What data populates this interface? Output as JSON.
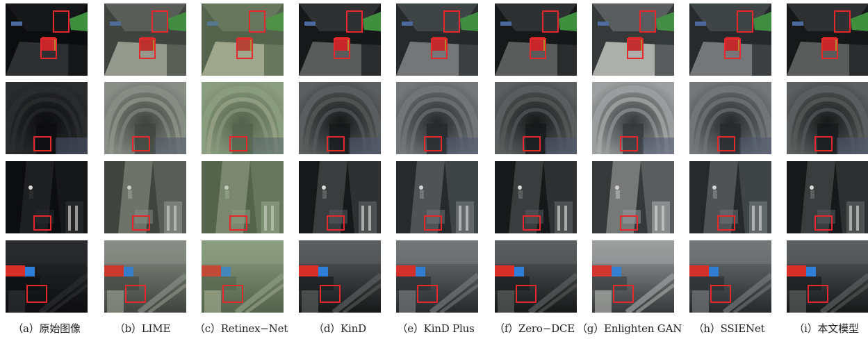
{
  "rows": [
    {
      "scene": "tunnel-vehicle"
    },
    {
      "scene": "tunnel-arch"
    },
    {
      "scene": "tunnel-worker"
    },
    {
      "scene": "tunnel-equipment"
    }
  ],
  "columns": [
    {
      "label": "（a）原始图像",
      "tone": "dark"
    },
    {
      "label": "（b）LIME",
      "tone": "bright-noisy"
    },
    {
      "label": "（c）Retinex−Net",
      "tone": "bright-green"
    },
    {
      "label": "（d）KinD",
      "tone": "mid"
    },
    {
      "label": "（e）KinD Plus",
      "tone": "mid-bright"
    },
    {
      "label": "（f）Zero−DCE",
      "tone": "mid"
    },
    {
      "label": "（g）Enlighten GAN",
      "tone": "bright"
    },
    {
      "label": "（h）SSIENet",
      "tone": "mid-bright"
    },
    {
      "label": "（i）本文模型",
      "tone": "mid"
    }
  ],
  "colors": {
    "highlight_box": "#e5282b",
    "caption_text": "#222222"
  }
}
